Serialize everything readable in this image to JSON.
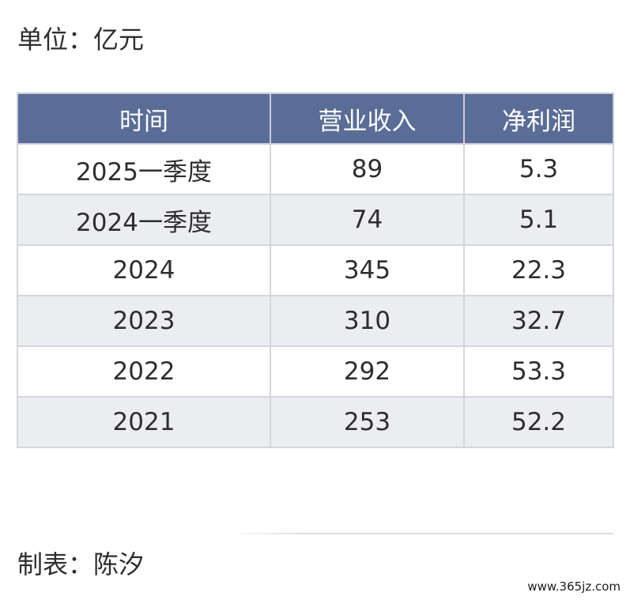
{
  "unit": "单位：亿元",
  "table": {
    "headers": [
      "时间",
      "营业收入",
      "净利润"
    ],
    "rows": [
      [
        "2025一季度",
        "89",
        "5.3"
      ],
      [
        "2024一季度",
        "74",
        "5.1"
      ],
      [
        "2024",
        "345",
        "22.3"
      ],
      [
        "2023",
        "310",
        "32.7"
      ],
      [
        "2022",
        "292",
        "53.3"
      ],
      [
        "2021",
        "253",
        "52.2"
      ]
    ]
  },
  "credit": "制表：陈汐",
  "watermark": "www.365jz.com",
  "colors": {
    "header_bg": "#5a6d96",
    "header_text": "#ffffff",
    "row_alt_bg": "#ecedf1",
    "border": "#d3d6dc"
  }
}
